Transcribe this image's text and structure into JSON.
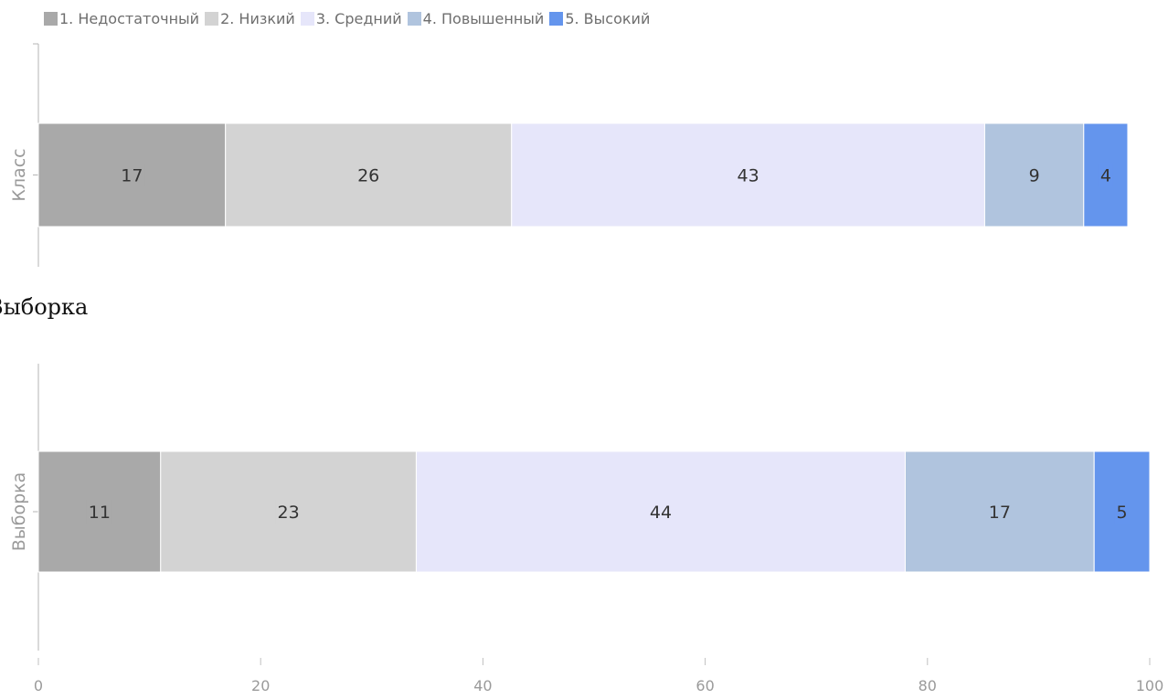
{
  "legend": [
    {
      "label": "1. Недостаточный",
      "color": "#a9a9a9"
    },
    {
      "label": "2. Низкий",
      "color": "#d3d3d3"
    },
    {
      "label": "3. Средний",
      "color": "#e6e6fa"
    },
    {
      "label": "4. Повышенный",
      "color": "#b0c4de"
    },
    {
      "label": "5. Высокий",
      "color": "#6495ed"
    }
  ],
  "section_title": "Выборка",
  "chart_data": [
    {
      "type": "bar",
      "orientation": "horizontal",
      "stacked": true,
      "ylabel": "Класс",
      "categories": [
        "Класс"
      ],
      "series": [
        {
          "name": "1. Недостаточный",
          "values": [
            17
          ]
        },
        {
          "name": "2. Низкий",
          "values": [
            26
          ]
        },
        {
          "name": "3. Средний",
          "values": [
            43
          ]
        },
        {
          "name": "4. Повышенный",
          "values": [
            9
          ]
        },
        {
          "name": "5. Высокий",
          "values": [
            4
          ]
        }
      ],
      "xlim": [
        0,
        100
      ]
    },
    {
      "type": "bar",
      "orientation": "horizontal",
      "stacked": true,
      "ylabel": "Выборка",
      "categories": [
        "Выборка"
      ],
      "series": [
        {
          "name": "1. Недостаточный",
          "values": [
            11
          ]
        },
        {
          "name": "2. Низкий",
          "values": [
            23
          ]
        },
        {
          "name": "3. Средний",
          "values": [
            44
          ]
        },
        {
          "name": "4. Повышенный",
          "values": [
            17
          ]
        },
        {
          "name": "5. Высокий",
          "values": [
            5
          ]
        }
      ],
      "xlim": [
        0,
        100
      ],
      "xticks": [
        0,
        20,
        40,
        60,
        80,
        100
      ]
    }
  ]
}
